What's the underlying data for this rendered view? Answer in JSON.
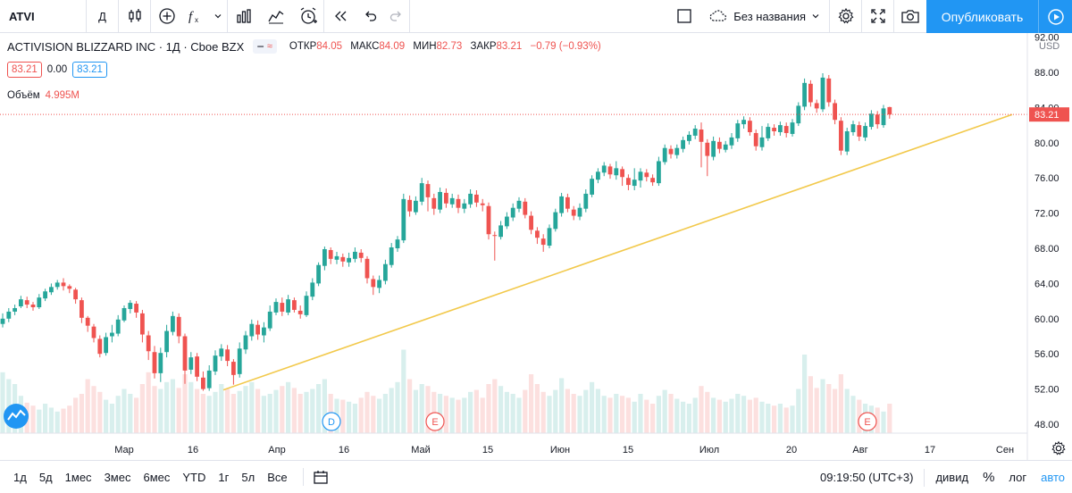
{
  "toolbar": {
    "symbol": "ATVI",
    "interval": "Д",
    "layout_name": "Без названия",
    "publish_label": "Опубликовать",
    "icons": [
      "candles-icon",
      "add-indicator-icon",
      "fx-icon",
      "chevron-down-icon",
      "bar-chart-icon",
      "templates-icon",
      "alert-icon",
      "replay-icon",
      "undo-icon",
      "redo-icon",
      "checkbox-icon",
      "cloud-icon",
      "settings-icon",
      "fullscreen-icon",
      "camera-icon",
      "play-icon"
    ]
  },
  "legend": {
    "title": "ACTIVISION BLIZZARD INC · 1Д · Cboe BZX",
    "badge": "≈",
    "open_label": "ОТКР",
    "open": "84.05",
    "high_label": "МАКС",
    "high": "84.09",
    "low_label": "МИН",
    "low": "82.73",
    "close_label": "ЗАКР",
    "close": "83.21",
    "change": "−0.79 (−0.93%)",
    "price_bid": "83.21",
    "spread": "0.00",
    "price_ask": "83.21",
    "volume_label": "Объём",
    "volume": "4.995M"
  },
  "chart_data": {
    "type": "candlestick",
    "currency": "USD",
    "last_price": "83.21",
    "y_ticks": [
      "92.00",
      "88.00",
      "84.00",
      "80.00",
      "76.00",
      "72.00",
      "68.00",
      "64.00",
      "60.00",
      "56.00",
      "52.00",
      "48.00"
    ],
    "ylim": [
      47,
      92.5
    ],
    "x_ticks": [
      "Мар",
      "16",
      "Апр",
      "16",
      "Май",
      "15",
      "Июн",
      "15",
      "Июл",
      "20",
      "Авг",
      "17",
      "Сен"
    ],
    "events": [
      "D",
      "E",
      "E"
    ],
    "colors": {
      "up": "#26a69a",
      "down": "#ef5350",
      "trend": "#f5c242"
    },
    "candles": [
      [
        59.4,
        60.0,
        59.0,
        60.6
      ],
      [
        60.0,
        60.8,
        59.6,
        61.2
      ],
      [
        60.8,
        61.2,
        60.4,
        61.6
      ],
      [
        61.4,
        62.2,
        61.2,
        62.6
      ],
      [
        62.1,
        61.6,
        61.2,
        62.5
      ],
      [
        61.6,
        61.3,
        60.9,
        61.9
      ],
      [
        61.3,
        62.4,
        61.1,
        62.8
      ],
      [
        62.3,
        63.1,
        62.0,
        63.4
      ],
      [
        63.0,
        63.6,
        62.7,
        64.0
      ],
      [
        63.6,
        64.1,
        63.3,
        64.4
      ],
      [
        64.1,
        63.7,
        63.2,
        64.6
      ],
      [
        63.7,
        63.4,
        62.9,
        63.9
      ],
      [
        63.3,
        62.2,
        61.7,
        63.5
      ],
      [
        62.1,
        60.1,
        59.5,
        62.4
      ],
      [
        60.1,
        59.2,
        58.5,
        60.3
      ],
      [
        59.1,
        57.8,
        57.3,
        59.4
      ],
      [
        57.7,
        56.0,
        55.6,
        58.1
      ],
      [
        56.1,
        57.9,
        55.8,
        58.4
      ],
      [
        58.0,
        58.4,
        57.3,
        59.3
      ],
      [
        58.3,
        59.9,
        58.0,
        60.4
      ],
      [
        59.8,
        61.2,
        59.6,
        61.5
      ],
      [
        61.1,
        61.8,
        60.6,
        62.1
      ],
      [
        61.7,
        60.7,
        60.1,
        62.0
      ],
      [
        60.6,
        58.2,
        57.3,
        61.0
      ],
      [
        58.1,
        56.3,
        55.3,
        58.6
      ],
      [
        56.2,
        53.8,
        53.2,
        56.9
      ],
      [
        53.8,
        56.1,
        52.8,
        56.7
      ],
      [
        56.2,
        58.6,
        55.6,
        59.3
      ],
      [
        58.5,
        60.3,
        58.1,
        60.8
      ],
      [
        60.2,
        58.0,
        57.2,
        60.6
      ],
      [
        58.0,
        54.1,
        52.6,
        58.3
      ],
      [
        54.2,
        55.6,
        53.7,
        56.2
      ],
      [
        55.7,
        53.4,
        52.9,
        56.1
      ],
      [
        53.3,
        52.0,
        51.8,
        54.0
      ],
      [
        52.1,
        54.1,
        51.8,
        54.7
      ],
      [
        54.0,
        55.8,
        53.6,
        56.4
      ],
      [
        55.7,
        56.6,
        55.2,
        57.1
      ],
      [
        56.5,
        55.2,
        54.6,
        57.0
      ],
      [
        55.1,
        53.6,
        52.5,
        55.4
      ],
      [
        53.7,
        56.6,
        53.3,
        57.3
      ],
      [
        56.5,
        58.1,
        56.0,
        58.6
      ],
      [
        58.0,
        59.4,
        57.5,
        59.9
      ],
      [
        59.3,
        58.2,
        57.6,
        59.8
      ],
      [
        58.1,
        59.0,
        57.3,
        59.6
      ],
      [
        58.9,
        60.8,
        58.6,
        61.5
      ],
      [
        60.7,
        61.9,
        60.4,
        62.3
      ],
      [
        61.8,
        60.8,
        60.3,
        62.4
      ],
      [
        60.7,
        62.2,
        60.4,
        62.7
      ],
      [
        62.1,
        61.0,
        60.7,
        62.4
      ],
      [
        60.9,
        60.5,
        60.0,
        61.5
      ],
      [
        60.4,
        62.6,
        60.2,
        63.1
      ],
      [
        62.5,
        64.1,
        62.1,
        64.6
      ],
      [
        64.0,
        66.1,
        63.7,
        66.4
      ],
      [
        66.0,
        67.9,
        65.5,
        68.2
      ],
      [
        67.8,
        66.8,
        66.2,
        68.1
      ],
      [
        66.7,
        67.1,
        66.2,
        67.6
      ],
      [
        67.0,
        66.5,
        65.9,
        67.4
      ],
      [
        66.4,
        66.9,
        65.9,
        67.5
      ],
      [
        66.8,
        67.6,
        66.4,
        68.1
      ],
      [
        67.5,
        66.9,
        66.4,
        67.9
      ],
      [
        66.8,
        64.6,
        64.0,
        67.1
      ],
      [
        64.5,
        63.6,
        62.7,
        64.9
      ],
      [
        63.5,
        64.4,
        62.9,
        64.9
      ],
      [
        64.3,
        66.2,
        63.9,
        66.7
      ],
      [
        66.1,
        68.1,
        65.8,
        68.6
      ],
      [
        68.0,
        69.0,
        67.6,
        69.4
      ],
      [
        68.9,
        73.6,
        68.6,
        74.2
      ],
      [
        73.5,
        72.2,
        71.6,
        74.0
      ],
      [
        72.1,
        73.4,
        71.8,
        73.9
      ],
      [
        73.3,
        75.4,
        72.9,
        76.0
      ],
      [
        75.3,
        73.8,
        72.2,
        75.7
      ],
      [
        73.7,
        72.5,
        71.8,
        74.2
      ],
      [
        72.4,
        74.4,
        72.0,
        74.9
      ],
      [
        74.3,
        73.1,
        72.6,
        74.8
      ],
      [
        73.0,
        73.7,
        72.6,
        74.2
      ],
      [
        73.6,
        72.6,
        72.0,
        74.1
      ],
      [
        72.5,
        73.1,
        72.0,
        73.6
      ],
      [
        73.0,
        74.2,
        72.6,
        74.7
      ],
      [
        74.1,
        73.2,
        72.7,
        74.6
      ],
      [
        73.1,
        72.9,
        72.2,
        73.6
      ],
      [
        72.8,
        69.6,
        69.0,
        73.2
      ],
      [
        69.5,
        69.4,
        66.6,
        69.9
      ],
      [
        69.3,
        70.6,
        69.0,
        71.1
      ],
      [
        70.5,
        71.6,
        70.2,
        72.1
      ],
      [
        71.5,
        72.6,
        71.1,
        73.1
      ],
      [
        72.5,
        73.4,
        72.1,
        73.8
      ],
      [
        73.3,
        71.8,
        71.4,
        73.7
      ],
      [
        71.7,
        70.1,
        69.6,
        72.2
      ],
      [
        70.0,
        69.2,
        68.5,
        70.4
      ],
      [
        69.1,
        68.4,
        67.6,
        69.6
      ],
      [
        68.3,
        70.3,
        68.0,
        70.7
      ],
      [
        70.2,
        72.1,
        69.9,
        72.5
      ],
      [
        72.0,
        73.9,
        71.6,
        74.3
      ],
      [
        73.8,
        72.5,
        72.1,
        74.2
      ],
      [
        72.4,
        71.7,
        71.2,
        72.8
      ],
      [
        71.6,
        72.6,
        71.2,
        73.1
      ],
      [
        72.5,
        74.2,
        72.1,
        74.7
      ],
      [
        74.1,
        75.9,
        73.8,
        76.3
      ],
      [
        75.8,
        76.7,
        75.4,
        77.1
      ],
      [
        76.6,
        77.4,
        76.2,
        77.8
      ],
      [
        77.3,
        76.4,
        75.9,
        77.6
      ],
      [
        76.3,
        77.1,
        75.8,
        77.9
      ],
      [
        77.0,
        76.1,
        75.1,
        77.3
      ],
      [
        76.0,
        75.2,
        74.6,
        76.4
      ],
      [
        75.1,
        75.8,
        74.6,
        77.1
      ],
      [
        75.7,
        76.7,
        74.9,
        77.1
      ],
      [
        76.6,
        76.1,
        75.6,
        77.0
      ],
      [
        76.0,
        75.5,
        75.1,
        76.4
      ],
      [
        75.4,
        77.9,
        75.1,
        78.4
      ],
      [
        77.8,
        79.4,
        77.5,
        79.8
      ],
      [
        79.3,
        78.7,
        78.2,
        79.7
      ],
      [
        78.6,
        79.4,
        78.2,
        79.8
      ],
      [
        79.3,
        80.3,
        78.9,
        80.7
      ],
      [
        80.2,
        80.9,
        79.8,
        81.3
      ],
      [
        80.8,
        81.6,
        80.4,
        82.0
      ],
      [
        81.5,
        80.1,
        77.2,
        82.3
      ],
      [
        80.0,
        78.5,
        76.2,
        80.4
      ],
      [
        78.4,
        80.2,
        78.0,
        80.7
      ],
      [
        80.1,
        79.3,
        78.8,
        80.6
      ],
      [
        79.2,
        79.8,
        78.9,
        80.2
      ],
      [
        79.7,
        80.6,
        79.3,
        81.1
      ],
      [
        80.5,
        82.2,
        80.1,
        82.6
      ],
      [
        82.1,
        82.6,
        81.6,
        83.0
      ],
      [
        82.5,
        81.2,
        80.8,
        82.9
      ],
      [
        81.1,
        79.6,
        79.1,
        81.5
      ],
      [
        79.5,
        80.6,
        79.1,
        81.9
      ],
      [
        80.5,
        81.8,
        80.2,
        82.2
      ],
      [
        81.7,
        81.3,
        80.8,
        82.1
      ],
      [
        81.2,
        82.0,
        80.8,
        82.4
      ],
      [
        81.9,
        81.1,
        80.6,
        82.3
      ],
      [
        81.0,
        82.3,
        80.7,
        82.7
      ],
      [
        82.2,
        84.2,
        81.9,
        84.6
      ],
      [
        84.1,
        86.8,
        83.7,
        87.3
      ],
      [
        86.7,
        84.6,
        84.1,
        87.1
      ],
      [
        84.5,
        83.9,
        83.4,
        84.9
      ],
      [
        83.8,
        87.4,
        83.5,
        87.9
      ],
      [
        87.3,
        84.6,
        84.1,
        87.7
      ],
      [
        84.5,
        82.6,
        82.1,
        84.9
      ],
      [
        82.5,
        79.1,
        78.6,
        82.9
      ],
      [
        79.0,
        81.3,
        78.6,
        81.7
      ],
      [
        81.2,
        82.1,
        80.8,
        82.5
      ],
      [
        82.0,
        80.7,
        80.2,
        82.4
      ],
      [
        80.6,
        81.9,
        80.2,
        82.3
      ],
      [
        81.8,
        83.3,
        81.5,
        83.7
      ],
      [
        83.2,
        82.1,
        81.6,
        83.6
      ],
      [
        82.0,
        83.9,
        81.7,
        84.3
      ],
      [
        84.05,
        83.21,
        82.73,
        84.09
      ]
    ],
    "volume_max_label": "",
    "volumes": [
      0.62,
      0.55,
      0.5,
      0.38,
      0.31,
      0.28,
      0.24,
      0.3,
      0.26,
      0.22,
      0.25,
      0.28,
      0.36,
      0.4,
      0.55,
      0.48,
      0.42,
      0.34,
      0.3,
      0.38,
      0.45,
      0.4,
      0.36,
      0.5,
      0.62,
      0.48,
      0.45,
      0.52,
      0.55,
      0.46,
      0.6,
      0.52,
      0.45,
      0.4,
      0.38,
      0.42,
      0.5,
      0.45,
      0.4,
      0.43,
      0.48,
      0.52,
      0.45,
      0.38,
      0.4,
      0.44,
      0.48,
      0.52,
      0.46,
      0.4,
      0.42,
      0.45,
      0.5,
      0.55,
      0.4,
      0.35,
      0.34,
      0.32,
      0.3,
      0.36,
      0.42,
      0.38,
      0.35,
      0.4,
      0.46,
      0.52,
      0.85,
      0.55,
      0.44,
      0.5,
      0.48,
      0.42,
      0.4,
      0.38,
      0.36,
      0.34,
      0.36,
      0.42,
      0.44,
      0.36,
      0.5,
      0.55,
      0.48,
      0.42,
      0.4,
      0.36,
      0.44,
      0.6,
      0.5,
      0.42,
      0.38,
      0.44,
      0.56,
      0.45,
      0.4,
      0.38,
      0.44,
      0.52,
      0.45,
      0.38,
      0.36,
      0.4,
      0.38,
      0.36,
      0.32,
      0.4,
      0.34,
      0.3,
      0.38,
      0.44,
      0.4,
      0.35,
      0.32,
      0.3,
      0.36,
      0.48,
      0.42,
      0.36,
      0.34,
      0.32,
      0.35,
      0.4,
      0.38,
      0.34,
      0.36,
      0.32,
      0.3,
      0.28,
      0.3,
      0.26,
      0.28,
      0.45,
      0.8,
      0.58,
      0.46,
      0.55,
      0.5,
      0.45,
      0.6,
      0.45,
      0.38,
      0.34,
      0.3,
      0.28,
      0.26,
      0.22
    ]
  },
  "bottom": {
    "ranges": [
      "1д",
      "5д",
      "1мес",
      "3мес",
      "6мес",
      "YTD",
      "1г",
      "5л",
      "Все"
    ],
    "time": "09:19:50 (UTC+3)",
    "div_label": "дивид",
    "pct_label": "%",
    "log_label": "лог",
    "auto_label": "авто"
  }
}
